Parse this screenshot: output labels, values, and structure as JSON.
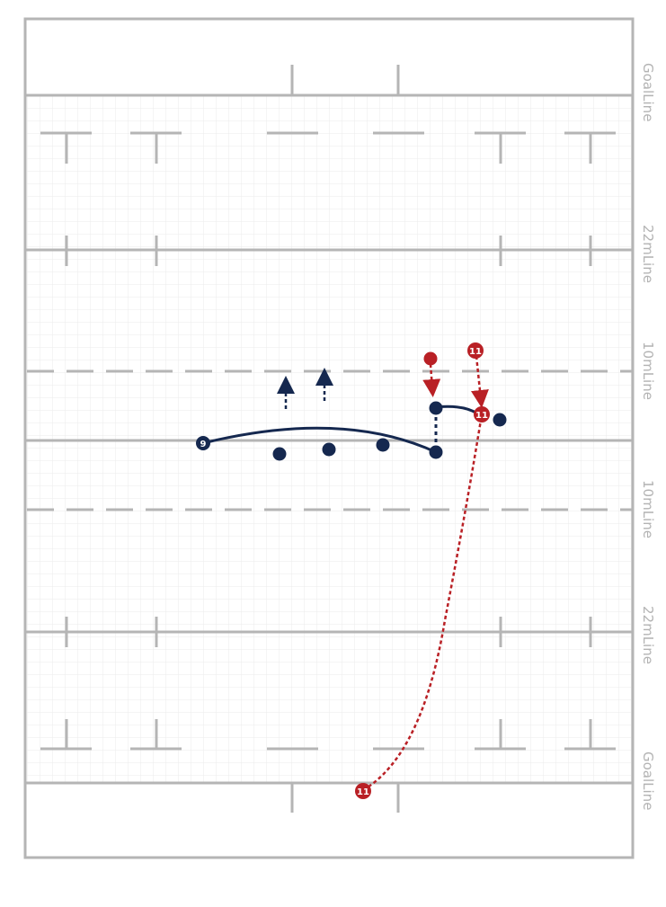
{
  "colors": {
    "pitch_line": "#b5b5b5",
    "grid": "#e8e8e8",
    "team_blue": "#15284f",
    "team_red": "#b92025"
  },
  "field_labels": {
    "goal_top": "GoalLine",
    "line22_top": "22mLine",
    "line10_top": "10mLine",
    "line10_bottom": "10mLine",
    "line22_bottom": "22mLine",
    "goal_bottom": "GoalLine"
  },
  "players": {
    "blue_scrumhalf_number": "9",
    "red_wing_top_number": "11",
    "red_wing_mid_number": "11",
    "red_wing_bottom_number": "11"
  }
}
